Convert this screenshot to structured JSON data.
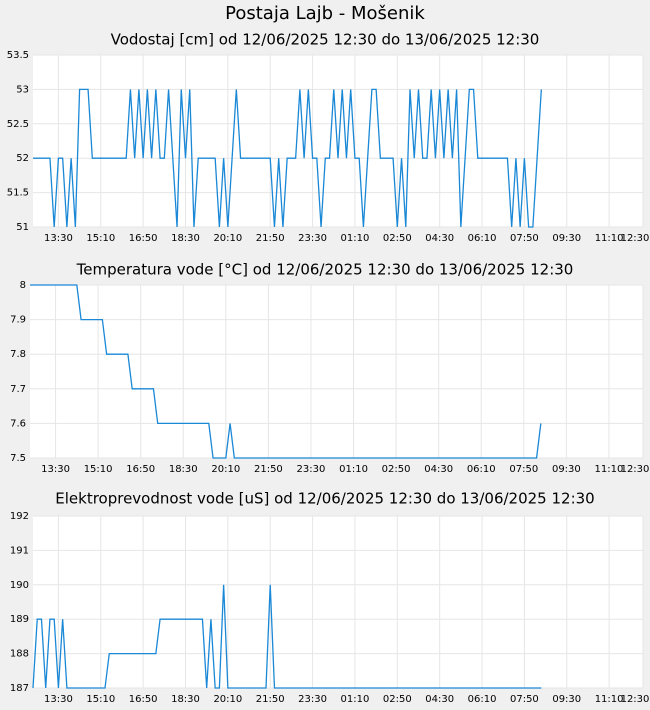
{
  "title": "Postaja Lajb - Mošenik",
  "chart_data": [
    {
      "type": "line",
      "title": "Vodostaj [cm] od 12/06/2025 12:30 do 13/06/2025 12:30",
      "color": "#1a88d6",
      "grid": true,
      "x": [
        0,
        10,
        20,
        30,
        40,
        50,
        60,
        70,
        80,
        90,
        100,
        110,
        120,
        130,
        140,
        150,
        160,
        170,
        180,
        190,
        200,
        210,
        220,
        230,
        240,
        250,
        260,
        270,
        280,
        290,
        300,
        310,
        320,
        330,
        340,
        350,
        360,
        370,
        380,
        390,
        400,
        410,
        420,
        430,
        440,
        450,
        460,
        470,
        480,
        490,
        500,
        510,
        520,
        530,
        540,
        550,
        560,
        570,
        580,
        590,
        600,
        610,
        620,
        630,
        640,
        650,
        660,
        670,
        680,
        690,
        700,
        710,
        720,
        730,
        740,
        750,
        760,
        770,
        780,
        790,
        800,
        810,
        820,
        830,
        840,
        850,
        860,
        870,
        880,
        890,
        900,
        910,
        920,
        930,
        940,
        950,
        960,
        970,
        980,
        990,
        1000,
        1010,
        1020,
        1030,
        1040,
        1050,
        1060,
        1070,
        1080,
        1090,
        1100,
        1110,
        1120,
        1130,
        1140,
        1150,
        1160,
        1170,
        1180,
        1190,
        1200
      ],
      "values": [
        52,
        52,
        52,
        52,
        52,
        51,
        52,
        52,
        51,
        52,
        51,
        53,
        53,
        53,
        52,
        52,
        52,
        52,
        52,
        52,
        52,
        52,
        52,
        53,
        52,
        53,
        52,
        53,
        52,
        53,
        52,
        52,
        53,
        52,
        51,
        53,
        52,
        53,
        51,
        52,
        52,
        52,
        52,
        52,
        51,
        52,
        51,
        52,
        53,
        52,
        52,
        52,
        52,
        52,
        52,
        52,
        52,
        51,
        52,
        51,
        52,
        52,
        52,
        53,
        52,
        53,
        52,
        52,
        51,
        52,
        52,
        53,
        52,
        53,
        52,
        53,
        52,
        52,
        51,
        52,
        53,
        53,
        52,
        52,
        52,
        52,
        51,
        52,
        51,
        53,
        52,
        53,
        52,
        52,
        53,
        52,
        53,
        52,
        53,
        52,
        53,
        51,
        52,
        53,
        53,
        52,
        52,
        52,
        52,
        52,
        52,
        52,
        52,
        51,
        52,
        51,
        52,
        51,
        51,
        52,
        53
      ],
      "xlim": [
        0,
        1440
      ],
      "ylim": [
        51,
        53.5
      ],
      "yticks": [
        51,
        51.5,
        52,
        52.5,
        53,
        53.5
      ],
      "xticks": [
        {
          "value": 60,
          "label": "13:30"
        },
        {
          "value": 160,
          "label": "15:10"
        },
        {
          "value": 260,
          "label": "16:50"
        },
        {
          "value": 360,
          "label": "18:30"
        },
        {
          "value": 460,
          "label": "20:10"
        },
        {
          "value": 560,
          "label": "21:50"
        },
        {
          "value": 660,
          "label": "23:30"
        },
        {
          "value": 760,
          "label": "01:10"
        },
        {
          "value": 860,
          "label": "02:50"
        },
        {
          "value": 960,
          "label": "04:30"
        },
        {
          "value": 1060,
          "label": "06:10"
        },
        {
          "value": 1160,
          "label": "07:50"
        },
        {
          "value": 1260,
          "label": "09:30"
        },
        {
          "value": 1360,
          "label": "11:10"
        },
        {
          "value": 1440,
          "label": "12:30"
        }
      ]
    },
    {
      "type": "line",
      "title": "Temperatura vode [°C] od 12/06/2025 12:30 do 13/06/2025 12:30",
      "color": "#1a88d6",
      "grid": true,
      "x": [
        0,
        10,
        20,
        30,
        40,
        50,
        60,
        70,
        80,
        90,
        100,
        110,
        120,
        130,
        140,
        150,
        160,
        170,
        180,
        190,
        200,
        210,
        220,
        230,
        240,
        250,
        260,
        270,
        280,
        290,
        300,
        310,
        320,
        330,
        340,
        350,
        360,
        370,
        380,
        390,
        400,
        410,
        420,
        430,
        440,
        450,
        460,
        470,
        480,
        490,
        500,
        510,
        520,
        530,
        540,
        550,
        560,
        570,
        580,
        590,
        600,
        610,
        620,
        630,
        640,
        650,
        660,
        670,
        680,
        690,
        700,
        710,
        720,
        730,
        740,
        750,
        760,
        770,
        780,
        790,
        800,
        810,
        820,
        830,
        840,
        850,
        860,
        870,
        880,
        890,
        900,
        910,
        920,
        930,
        940,
        950,
        960,
        970,
        980,
        990,
        1000,
        1010,
        1020,
        1030,
        1040,
        1050,
        1060,
        1070,
        1080,
        1090,
        1100,
        1110,
        1120,
        1130,
        1140,
        1150,
        1160,
        1170,
        1180,
        1190,
        1200
      ],
      "values": [
        8,
        8,
        8,
        8,
        8,
        8,
        8,
        8,
        8,
        8,
        8,
        8,
        7.9,
        7.9,
        7.9,
        7.9,
        7.9,
        7.9,
        7.8,
        7.8,
        7.8,
        7.8,
        7.8,
        7.8,
        7.7,
        7.7,
        7.7,
        7.7,
        7.7,
        7.7,
        7.6,
        7.6,
        7.6,
        7.6,
        7.6,
        7.6,
        7.6,
        7.6,
        7.6,
        7.6,
        7.6,
        7.6,
        7.6,
        7.5,
        7.5,
        7.5,
        7.5,
        7.6,
        7.5,
        7.5,
        7.5,
        7.5,
        7.5,
        7.5,
        7.5,
        7.5,
        7.5,
        7.5,
        7.5,
        7.5,
        7.5,
        7.5,
        7.5,
        7.5,
        7.5,
        7.5,
        7.5,
        7.5,
        7.5,
        7.5,
        7.5,
        7.5,
        7.5,
        7.5,
        7.5,
        7.5,
        7.5,
        7.5,
        7.5,
        7.5,
        7.5,
        7.5,
        7.5,
        7.5,
        7.5,
        7.5,
        7.5,
        7.5,
        7.5,
        7.5,
        7.5,
        7.5,
        7.5,
        7.5,
        7.5,
        7.5,
        7.5,
        7.5,
        7.5,
        7.5,
        7.5,
        7.5,
        7.5,
        7.5,
        7.5,
        7.5,
        7.5,
        7.5,
        7.5,
        7.5,
        7.5,
        7.5,
        7.5,
        7.5,
        7.5,
        7.5,
        7.5,
        7.5,
        7.5,
        7.5,
        7.6
      ],
      "xlim": [
        0,
        1440
      ],
      "ylim": [
        7.5,
        8
      ],
      "yticks": [
        7.5,
        7.6,
        7.7,
        7.8,
        7.9,
        8
      ],
      "xticks": [
        {
          "value": 60,
          "label": "13:30"
        },
        {
          "value": 160,
          "label": "15:10"
        },
        {
          "value": 260,
          "label": "16:50"
        },
        {
          "value": 360,
          "label": "18:30"
        },
        {
          "value": 460,
          "label": "20:10"
        },
        {
          "value": 560,
          "label": "21:50"
        },
        {
          "value": 660,
          "label": "23:30"
        },
        {
          "value": 760,
          "label": "01:10"
        },
        {
          "value": 860,
          "label": "02:50"
        },
        {
          "value": 960,
          "label": "04:30"
        },
        {
          "value": 1060,
          "label": "06:10"
        },
        {
          "value": 1160,
          "label": "07:50"
        },
        {
          "value": 1260,
          "label": "09:30"
        },
        {
          "value": 1360,
          "label": "11:10"
        },
        {
          "value": 1440,
          "label": "12:30"
        }
      ]
    },
    {
      "type": "line",
      "title": "Elektroprevodnost vode [uS] od 12/06/2025 12:30 do 13/06/2025 12:30",
      "color": "#1a88d6",
      "grid": true,
      "x": [
        0,
        10,
        20,
        30,
        40,
        50,
        60,
        70,
        80,
        90,
        100,
        110,
        120,
        130,
        140,
        150,
        160,
        170,
        180,
        190,
        200,
        210,
        220,
        230,
        240,
        250,
        260,
        270,
        280,
        290,
        300,
        310,
        320,
        330,
        340,
        350,
        360,
        370,
        380,
        390,
        400,
        410,
        420,
        430,
        440,
        450,
        460,
        470,
        480,
        490,
        500,
        510,
        520,
        530,
        540,
        550,
        560,
        570,
        580,
        590,
        600,
        610,
        620,
        630,
        640,
        650,
        660,
        670,
        680,
        690,
        700,
        710,
        720,
        730,
        740,
        750,
        760,
        770,
        780,
        790,
        800,
        810,
        820,
        830,
        840,
        850,
        860,
        870,
        880,
        890,
        900,
        910,
        920,
        930,
        940,
        950,
        960,
        970,
        980,
        990,
        1000,
        1010,
        1020,
        1030,
        1040,
        1050,
        1060,
        1070,
        1080,
        1090,
        1100,
        1110,
        1120,
        1130,
        1140,
        1150,
        1160,
        1170,
        1180,
        1190,
        1200
      ],
      "values": [
        187,
        189,
        189,
        187,
        189,
        189,
        187,
        189,
        187,
        187,
        187,
        187,
        187,
        187,
        187,
        187,
        187,
        187,
        188,
        188,
        188,
        188,
        188,
        188,
        188,
        188,
        188,
        188,
        188,
        188,
        189,
        189,
        189,
        189,
        189,
        189,
        189,
        189,
        189,
        189,
        189,
        187,
        189,
        187,
        187,
        190,
        187,
        187,
        187,
        187,
        187,
        187,
        187,
        187,
        187,
        187,
        190,
        187,
        187,
        187,
        187,
        187,
        187,
        187,
        187,
        187,
        187,
        187,
        187,
        187,
        187,
        187,
        187,
        187,
        187,
        187,
        187,
        187,
        187,
        187,
        187,
        187,
        187,
        187,
        187,
        187,
        187,
        187,
        187,
        187,
        187,
        187,
        187,
        187,
        187,
        187,
        187,
        187,
        187,
        187,
        187,
        187,
        187,
        187,
        187,
        187,
        187,
        187,
        187,
        187,
        187,
        187,
        187,
        187,
        187,
        187,
        187,
        187,
        187,
        187,
        187
      ],
      "xlim": [
        0,
        1440
      ],
      "ylim": [
        187,
        192
      ],
      "yticks": [
        187,
        188,
        189,
        190,
        191,
        192
      ],
      "xticks": [
        {
          "value": 60,
          "label": "13:30"
        },
        {
          "value": 160,
          "label": "15:10"
        },
        {
          "value": 260,
          "label": "16:50"
        },
        {
          "value": 360,
          "label": "18:30"
        },
        {
          "value": 460,
          "label": "20:10"
        },
        {
          "value": 560,
          "label": "21:50"
        },
        {
          "value": 660,
          "label": "23:30"
        },
        {
          "value": 760,
          "label": "01:10"
        },
        {
          "value": 860,
          "label": "02:50"
        },
        {
          "value": 960,
          "label": "04:30"
        },
        {
          "value": 1060,
          "label": "06:10"
        },
        {
          "value": 1160,
          "label": "07:50"
        },
        {
          "value": 1260,
          "label": "09:30"
        },
        {
          "value": 1360,
          "label": "11:10"
        },
        {
          "value": 1440,
          "label": "12:30"
        }
      ]
    }
  ]
}
